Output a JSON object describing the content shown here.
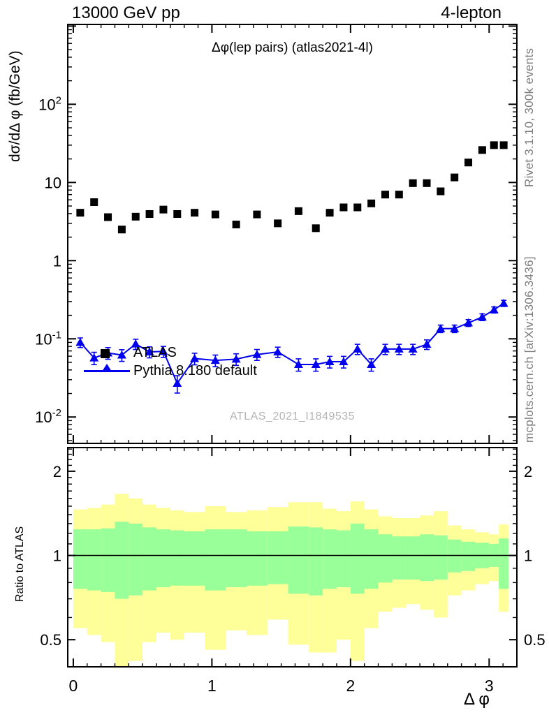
{
  "header": {
    "left": "13000 GeV pp",
    "right": "4-lepton"
  },
  "labels": {
    "y_axis": "dσ/dΔ φ (fb/GeV)",
    "x_axis": "Δ φ",
    "ratio_y_axis": "Ratio to ATLAS",
    "title_inside": "Δφ(lep pairs) (atlas2021-4l)",
    "watermark": "ATLAS_2021_I1849535",
    "right_top": "Rivet 3.1.10,  300k events",
    "right_bottom": "mcplots.cern.ch [arXiv:1306.3436]"
  },
  "legend": {
    "items": [
      {
        "label": "ATLAS",
        "marker": "square",
        "color": "#000000"
      },
      {
        "label": "Pythia 8.180 default",
        "marker": "triangle",
        "color": "#0000ee"
      }
    ]
  },
  "colors": {
    "pythia_blue": "#0000ee",
    "band_outer_yellow": "#ffff99",
    "band_inner_green": "#99ff99",
    "frame": "#000000",
    "gray_text": "#7e7e7e",
    "watermark_gray": "#b5b5b5"
  },
  "chart_data": [
    {
      "type": "line",
      "panel": "main",
      "title": "Δφ(lep pairs) (atlas2021-4l)",
      "xlabel": "Δ φ",
      "ylabel": "dσ/dΔ φ (fb/GeV)",
      "xlim": [
        -0.04,
        3.2
      ],
      "ylim": [
        0.0046,
        1050
      ],
      "yscale": "log",
      "grid": false,
      "legend_position": "left-middle-inside",
      "xticks": [
        {
          "v": 0,
          "label": "0"
        },
        {
          "v": 1,
          "label": "1"
        },
        {
          "v": 2,
          "label": "2"
        },
        {
          "v": 3,
          "label": "3"
        }
      ],
      "yticks": [
        {
          "v": 100,
          "label": "10^2"
        },
        {
          "v": 10,
          "label": "10"
        },
        {
          "v": 1,
          "label": "1"
        },
        {
          "v": 0.1,
          "label": "10^-1"
        },
        {
          "v": 0.01,
          "label": "10^-2"
        }
      ],
      "x": [
        0.05,
        0.15,
        0.25,
        0.35,
        0.45,
        0.55,
        0.65,
        0.75,
        0.875,
        1.025,
        1.175,
        1.325,
        1.475,
        1.625,
        1.75,
        1.85,
        1.95,
        2.05,
        2.15,
        2.25,
        2.35,
        2.45,
        2.55,
        2.65,
        2.75,
        2.85,
        2.95,
        3.035,
        3.105
      ],
      "series": [
        {
          "name": "ATLAS",
          "marker": "square",
          "line": false,
          "color": "#000000",
          "values": [
            4.1,
            5.6,
            3.6,
            2.5,
            3.65,
            3.95,
            4.5,
            3.95,
            4.1,
            3.9,
            2.9,
            3.9,
            3.0,
            4.3,
            2.6,
            4.1,
            4.8,
            4.8,
            5.4,
            7.0,
            7.0,
            9.8,
            9.8,
            7.7,
            11.6,
            18.0,
            26.0,
            30.0,
            30.0
          ],
          "yerr_rel": 0.05
        },
        {
          "name": "Pythia 8.180 default",
          "marker": "triangle",
          "line": true,
          "color": "#0000ee",
          "values": [
            0.09,
            0.057,
            0.066,
            0.062,
            0.086,
            0.068,
            0.069,
            0.027,
            0.056,
            0.053,
            0.055,
            0.063,
            0.068,
            0.047,
            0.047,
            0.051,
            0.051,
            0.074,
            0.047,
            0.074,
            0.074,
            0.074,
            0.085,
            0.135,
            0.135,
            0.16,
            0.19,
            0.235,
            0.285
          ],
          "yerr_rel": [
            0.14,
            0.18,
            0.17,
            0.17,
            0.15,
            0.16,
            0.16,
            0.25,
            0.17,
            0.17,
            0.17,
            0.16,
            0.15,
            0.18,
            0.18,
            0.17,
            0.17,
            0.15,
            0.18,
            0.15,
            0.15,
            0.15,
            0.14,
            0.11,
            0.11,
            0.1,
            0.1,
            0.09,
            0.09
          ]
        }
      ]
    },
    {
      "type": "band",
      "panel": "ratio",
      "ylabel": "Ratio to ATLAS",
      "xlim": [
        -0.04,
        3.2
      ],
      "ylim": [
        0.4,
        2.43
      ],
      "yscale": "log",
      "reference_line": 1.0,
      "yticks": [
        {
          "v": 2,
          "label": "2"
        },
        {
          "v": 1,
          "label": "1"
        },
        {
          "v": 0.5,
          "label": "0.5"
        }
      ],
      "bin_edges": [
        0,
        0.1,
        0.2,
        0.3,
        0.4,
        0.5,
        0.6,
        0.7,
        0.8,
        0.95,
        1.1,
        1.25,
        1.4,
        1.55,
        1.7,
        1.8,
        1.9,
        2.0,
        2.1,
        2.2,
        2.3,
        2.4,
        2.5,
        2.6,
        2.7,
        2.8,
        2.9,
        3.0,
        3.07,
        3.1416
      ],
      "bands": [
        {
          "name": "total-uncertainty",
          "color": "#ffff99",
          "hi": [
            1.46,
            1.48,
            1.52,
            1.66,
            1.6,
            1.52,
            1.48,
            1.45,
            1.43,
            1.5,
            1.43,
            1.45,
            1.49,
            1.55,
            1.55,
            1.47,
            1.44,
            1.56,
            1.46,
            1.38,
            1.36,
            1.36,
            1.39,
            1.44,
            1.28,
            1.24,
            1.21,
            1.19,
            1.29
          ],
          "lo": [
            0.55,
            0.52,
            0.49,
            0.34,
            0.42,
            0.49,
            0.53,
            0.5,
            0.53,
            0.46,
            0.54,
            0.52,
            0.59,
            0.48,
            0.45,
            0.45,
            0.5,
            0.42,
            0.55,
            0.63,
            0.65,
            0.67,
            0.64,
            0.6,
            0.72,
            0.75,
            0.79,
            0.81,
            0.63
          ]
        },
        {
          "name": "stat-uncertainty",
          "color": "#99ff99",
          "hi": [
            1.24,
            1.24,
            1.25,
            1.32,
            1.3,
            1.26,
            1.24,
            1.23,
            1.22,
            1.24,
            1.24,
            1.22,
            1.22,
            1.27,
            1.26,
            1.24,
            1.23,
            1.3,
            1.24,
            1.19,
            1.17,
            1.17,
            1.19,
            1.18,
            1.14,
            1.12,
            1.11,
            1.1,
            1.15
          ],
          "lo": [
            0.76,
            0.75,
            0.74,
            0.7,
            0.72,
            0.75,
            0.77,
            0.78,
            0.78,
            0.75,
            0.77,
            0.78,
            0.79,
            0.73,
            0.72,
            0.76,
            0.77,
            0.73,
            0.76,
            0.8,
            0.82,
            0.82,
            0.81,
            0.82,
            0.87,
            0.88,
            0.9,
            0.91,
            0.76
          ]
        }
      ]
    }
  ]
}
